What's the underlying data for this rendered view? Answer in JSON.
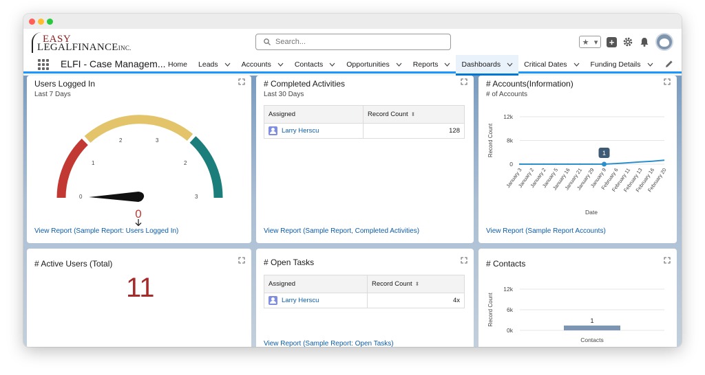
{
  "logo": {
    "line1": "EASY",
    "line2": "LEGALFINANCE",
    "inc": "INC."
  },
  "search": {
    "placeholder": "Search..."
  },
  "app_name": "ELFI - Case Managem...",
  "nav": {
    "items": [
      {
        "label": "Home",
        "dropdown": false
      },
      {
        "label": "Leads",
        "dropdown": true
      },
      {
        "label": "Accounts",
        "dropdown": true
      },
      {
        "label": "Contacts",
        "dropdown": true
      },
      {
        "label": "Opportunities",
        "dropdown": true
      },
      {
        "label": "Reports",
        "dropdown": true
      },
      {
        "label": "Dashboards",
        "dropdown": true,
        "active": true
      },
      {
        "label": "Critical Dates",
        "dropdown": true
      },
      {
        "label": "Funding Details",
        "dropdown": true
      }
    ]
  },
  "cards": {
    "users_logged_in": {
      "title": "Users Logged In",
      "subtitle": "Last 7 Days",
      "gauge": {
        "ticks": [
          "0",
          "1",
          "2",
          "3",
          "2",
          "3"
        ],
        "value": "0",
        "min": 0,
        "max": 3
      },
      "link": "View Report (Sample Report: Users Logged In)"
    },
    "completed_activities": {
      "title": "# Completed Activities",
      "subtitle": "Last 30 Days",
      "columns": [
        "Assigned",
        "Record Count"
      ],
      "rows": [
        {
          "assigned": "Larry Herscu",
          "count": "128"
        }
      ],
      "link": "View Report (Sample Report, Completed Activities)"
    },
    "accounts_information": {
      "title": "# Accounts(Information)",
      "subtitle": "# of Accounts",
      "link": "View Report (Sample Report Accounts)"
    },
    "active_users": {
      "title": "# Active Users (Total)",
      "value": "11"
    },
    "open_tasks": {
      "title": "# Open Tasks",
      "columns": [
        "Assigned",
        "Record Count"
      ],
      "rows": [
        {
          "assigned": "Larry Herscu",
          "count": "4x"
        }
      ],
      "link": "View Report (Sample Report: Open Tasks)"
    },
    "contacts": {
      "title": "# Contacts"
    }
  },
  "chart_data": [
    {
      "type": "line",
      "xlabel": "Date",
      "ylabel": "Record Count",
      "yticks": [
        "12k",
        "8k",
        "0"
      ],
      "ylim": [
        0,
        12000
      ],
      "x": [
        "January 3",
        "January 2",
        "January 2",
        "January 5",
        "January 16",
        "January 21",
        "January 29",
        "January 9",
        "February 6",
        "February 11",
        "February 13",
        "February 16",
        "February 20"
      ],
      "values": [
        0,
        0,
        0,
        0,
        0,
        0,
        0,
        1,
        150,
        350,
        550,
        750,
        1000
      ],
      "annotations": [
        {
          "index": 7,
          "label": "1"
        }
      ],
      "color": "#2b8fcc"
    },
    {
      "type": "bar",
      "xlabel": "",
      "ylabel": "Record Count",
      "yticks": [
        "12k",
        "6k",
        "0k"
      ],
      "ylim": [
        0,
        12000
      ],
      "categories": [
        "Contacts"
      ],
      "values": [
        1
      ],
      "labels": [
        "1"
      ],
      "color": "#7d95b5"
    }
  ]
}
